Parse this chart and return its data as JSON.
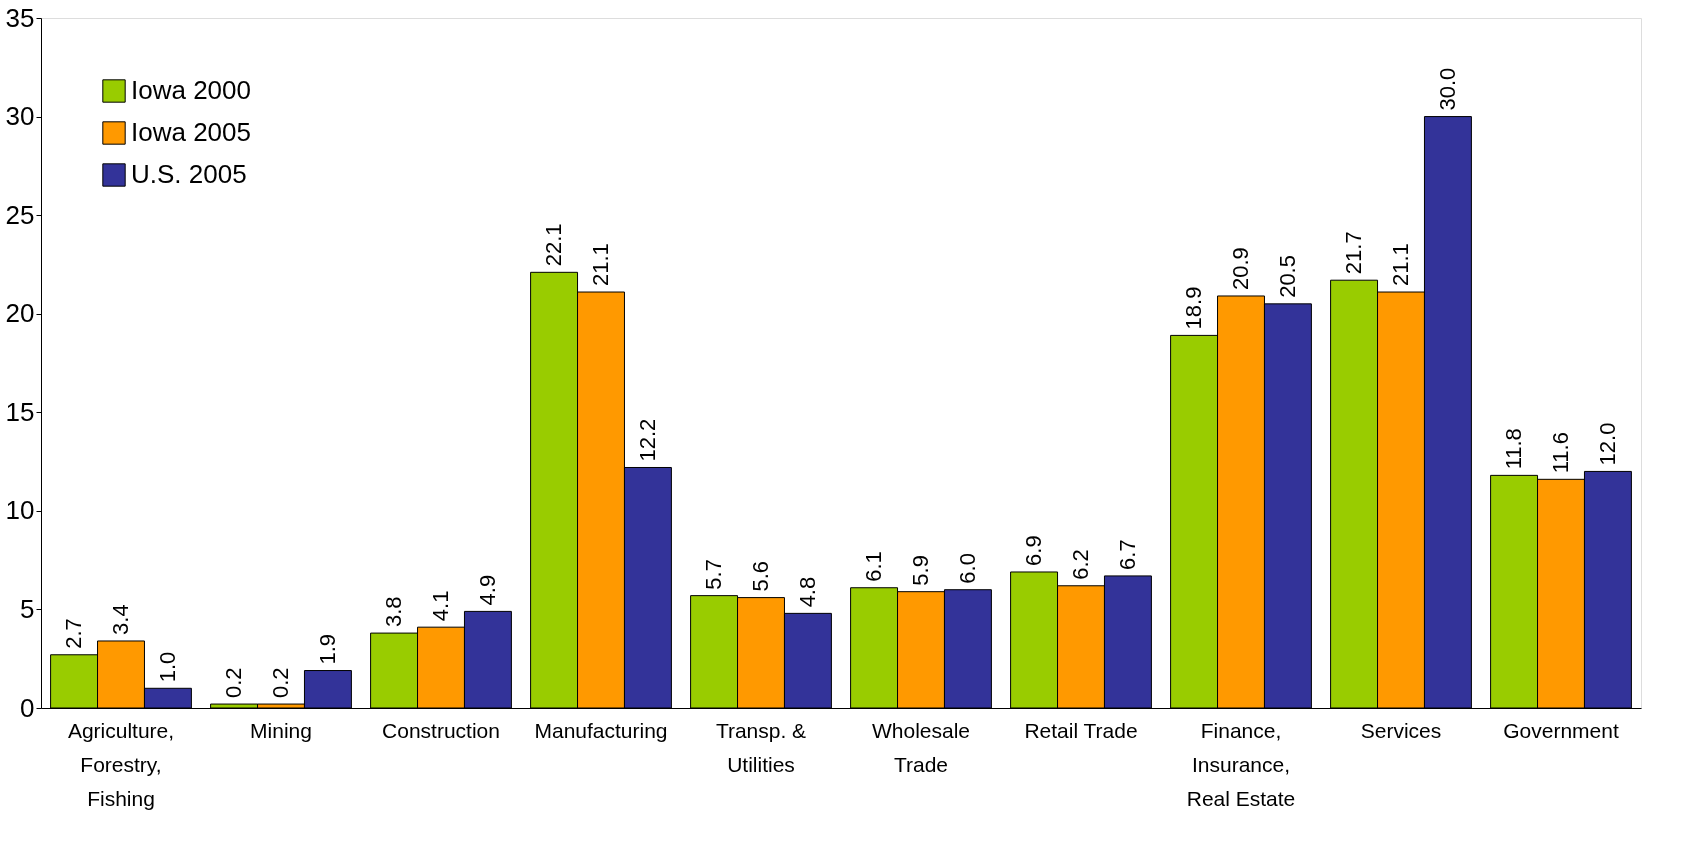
{
  "chart_data": {
    "type": "bar",
    "categories": [
      "Agriculture,\nForestry,\nFishing",
      "Mining",
      "Construction",
      "Manufacturing",
      "Transp. &\nUtilities",
      "Wholesale\nTrade",
      "Retail Trade",
      "Finance,\nInsurance,\nReal Estate",
      "Services",
      "Government"
    ],
    "series": [
      {
        "name": "Iowa 2000",
        "color": "#99cc00",
        "values": [
          2.7,
          0.2,
          3.8,
          22.1,
          5.7,
          6.1,
          6.9,
          18.9,
          21.7,
          11.8
        ],
        "value_labels": [
          "2.7",
          "0.2",
          "3.8",
          "22.1",
          "5.7",
          "6.1",
          "6.9",
          "18.9",
          "21.7",
          "11.8"
        ]
      },
      {
        "name": "Iowa 2005",
        "color": "#ff9900",
        "values": [
          3.4,
          0.2,
          4.1,
          21.1,
          5.6,
          5.9,
          6.2,
          20.9,
          21.1,
          11.6
        ],
        "value_labels": [
          "3.4",
          "0.2",
          "4.1",
          "21.1",
          "5.6",
          "5.9",
          "6.2",
          "20.9",
          "21.1",
          "11.6"
        ]
      },
      {
        "name": "U.S. 2005",
        "color": "#333399",
        "values": [
          1.0,
          1.9,
          4.9,
          12.2,
          4.8,
          6.0,
          6.7,
          20.5,
          30.0,
          12.0
        ],
        "value_labels": [
          "1.0",
          "1.9",
          "4.9",
          "12.2",
          "4.8",
          "6.0",
          "6.7",
          "20.5",
          "30.0",
          "12.0"
        ]
      }
    ],
    "ylim": [
      0,
      35
    ],
    "yticks": [
      0,
      5,
      10,
      15,
      20,
      25,
      30,
      35
    ],
    "grid": false,
    "legend": "top left"
  }
}
